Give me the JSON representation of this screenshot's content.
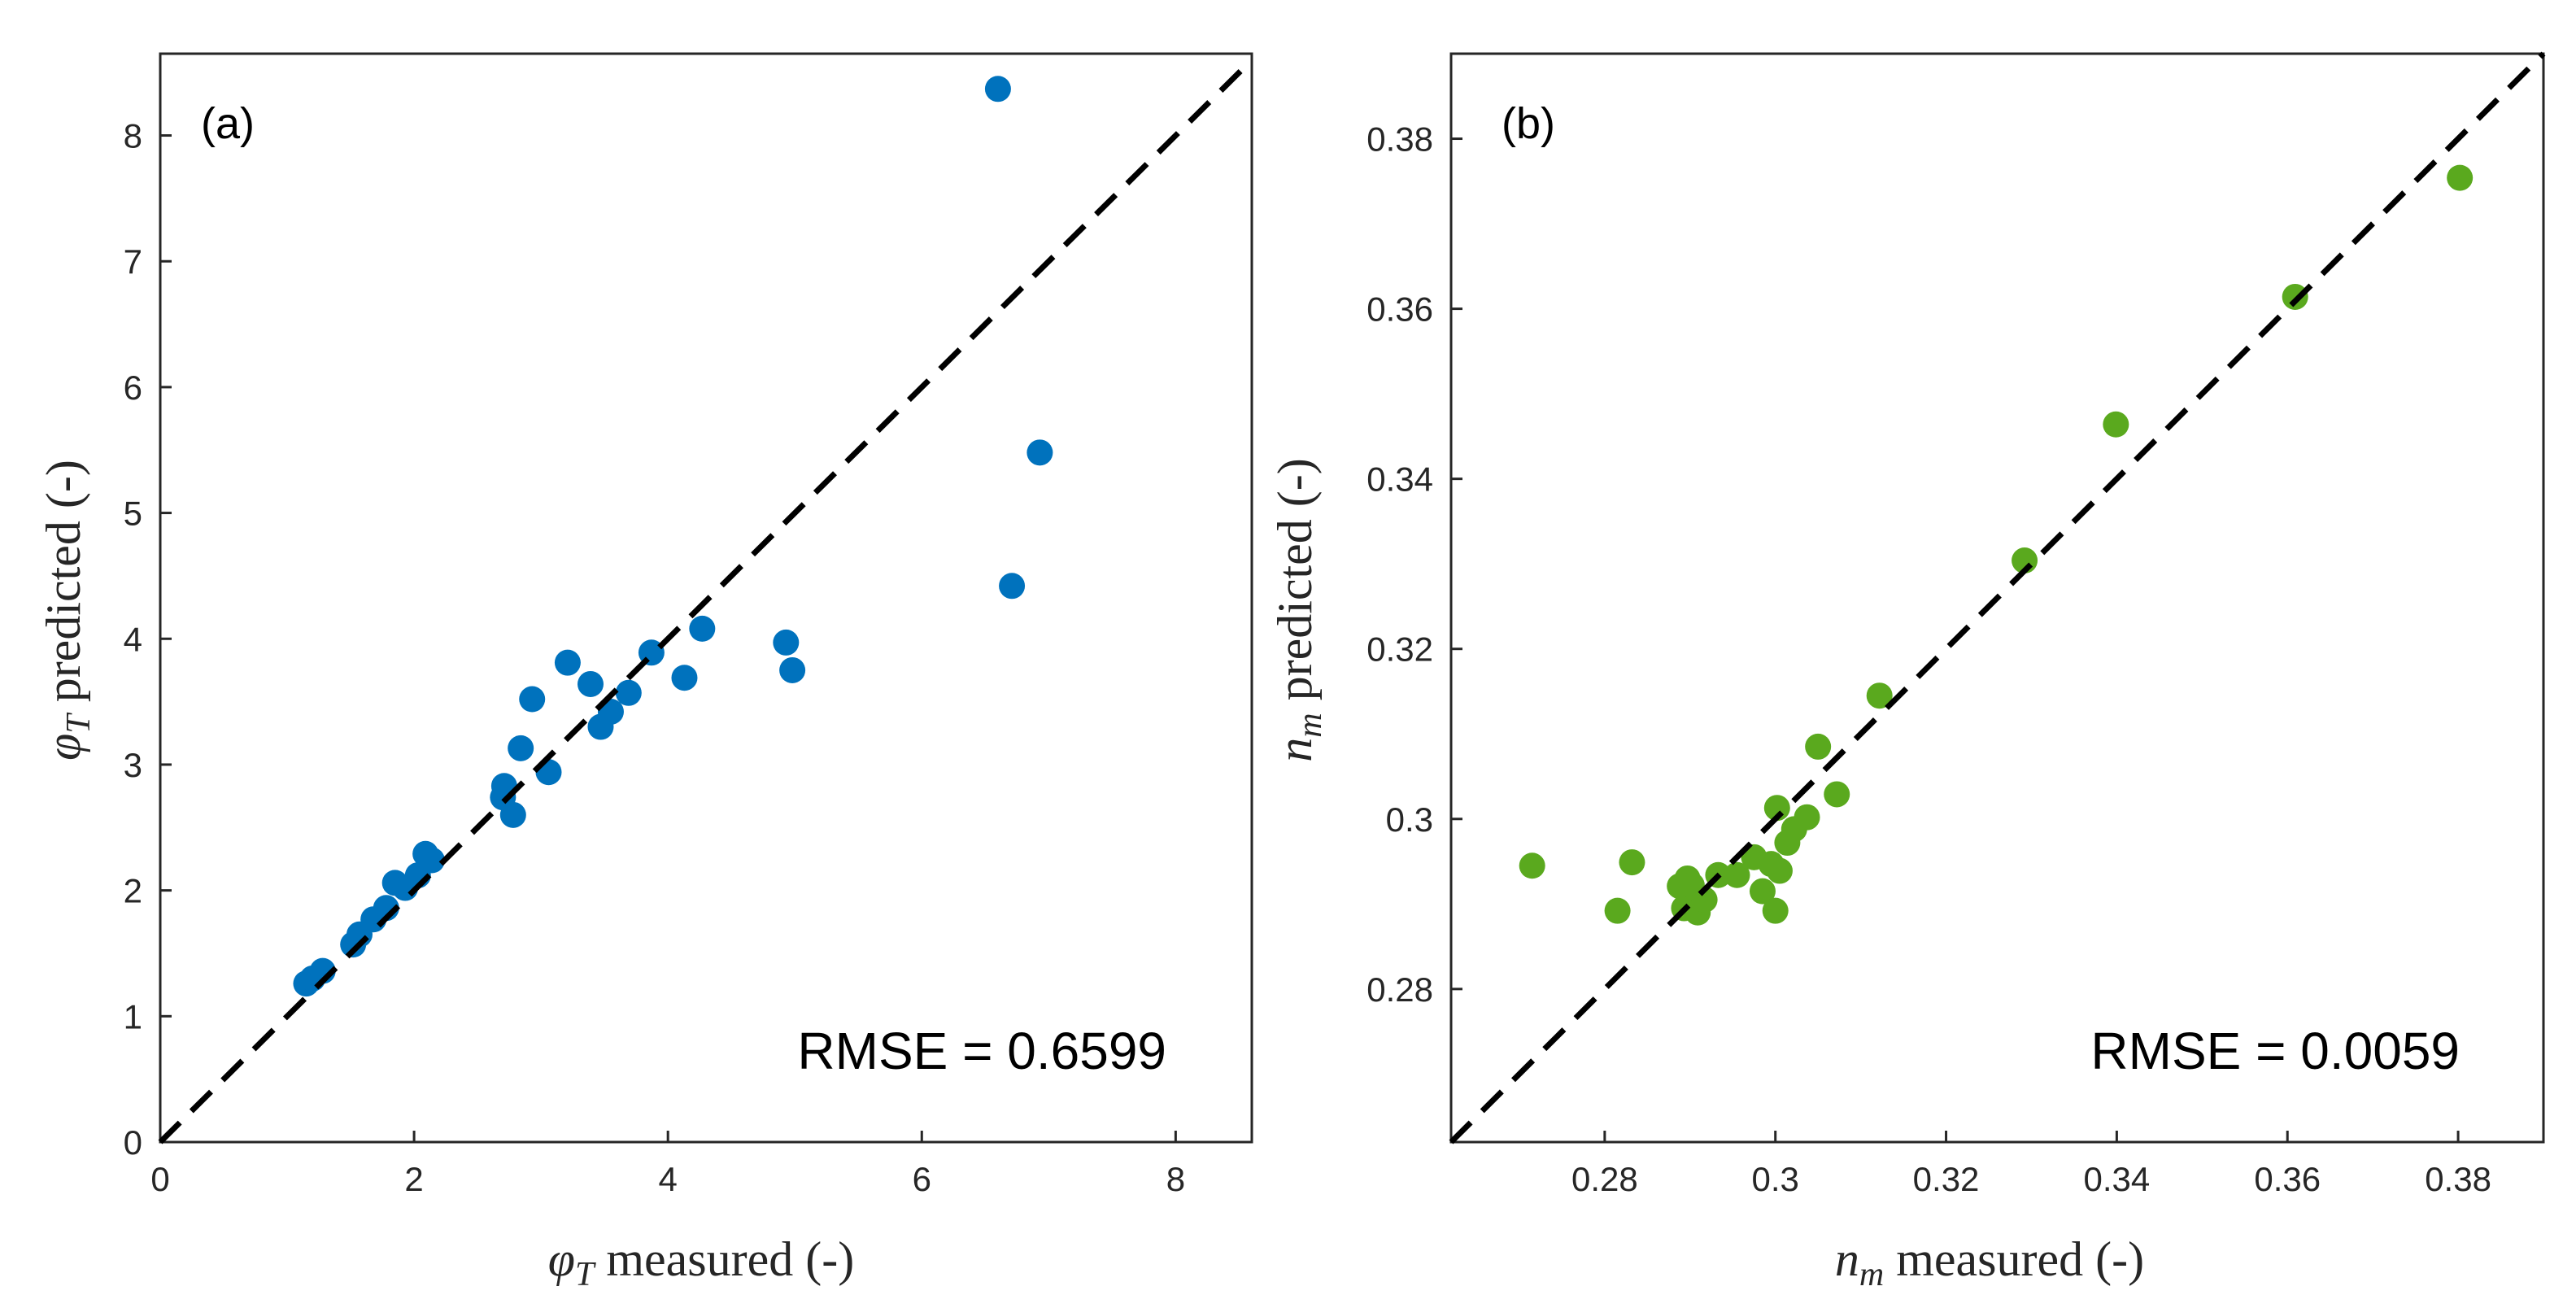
{
  "chart_data": [
    {
      "type": "scatter",
      "panel_label": "(a)",
      "x": [
        1.15,
        1.2,
        1.28,
        1.52,
        1.57,
        1.68,
        1.78,
        1.85,
        1.93,
        2.03,
        2.09,
        2.14,
        2.7,
        2.71,
        2.78,
        2.84,
        2.93,
        3.06,
        3.21,
        3.39,
        3.47,
        3.55,
        3.69,
        3.87,
        4.13,
        4.27,
        4.93,
        4.98,
        6.6,
        6.71,
        6.93
      ],
      "y": [
        1.26,
        1.3,
        1.36,
        1.57,
        1.65,
        1.77,
        1.86,
        2.06,
        2.02,
        2.12,
        2.29,
        2.24,
        2.74,
        2.83,
        2.6,
        3.13,
        3.52,
        2.94,
        3.81,
        3.64,
        3.3,
        3.42,
        3.57,
        3.89,
        3.69,
        4.08,
        3.97,
        3.75,
        8.37,
        4.42,
        5.48
      ],
      "color": "#0072BD",
      "reference_line": "y = x",
      "xlabel_symbol": "φ",
      "xlabel_sub": "T",
      "xlabel_text": " measured (-)",
      "ylabel_symbol": "φ",
      "ylabel_sub": "T",
      "ylabel_text": " predicted (-)",
      "xlim": [
        0,
        8.6
      ],
      "ylim": [
        0,
        8.65
      ],
      "xticks": [
        0,
        2,
        4,
        6,
        8
      ],
      "yticks": [
        0,
        1,
        2,
        3,
        4,
        5,
        6,
        7,
        8
      ],
      "xtick_labels": [
        "0",
        "2",
        "4",
        "6",
        "8"
      ],
      "ytick_labels": [
        "0",
        "1",
        "2",
        "3",
        "4",
        "5",
        "6",
        "7",
        "8"
      ],
      "annotation": "RMSE = 0.6599"
    },
    {
      "type": "scatter",
      "panel_label": "(b)",
      "x": [
        0.2715,
        0.2815,
        0.2832,
        0.2888,
        0.2893,
        0.2897,
        0.2902,
        0.2909,
        0.2917,
        0.2933,
        0.2955,
        0.2975,
        0.2985,
        0.2995,
        0.3,
        0.3002,
        0.3005,
        0.3014,
        0.3022,
        0.3037,
        0.305,
        0.3072,
        0.3122,
        0.3292,
        0.3399,
        0.3609,
        0.3802
      ],
      "y": [
        0.2945,
        0.2892,
        0.2949,
        0.2921,
        0.2895,
        0.293,
        0.2922,
        0.289,
        0.2905,
        0.2934,
        0.2934,
        0.2955,
        0.2915,
        0.2947,
        0.2892,
        0.3013,
        0.2939,
        0.2972,
        0.2988,
        0.3002,
        0.3085,
        0.3029,
        0.3145,
        0.3304,
        0.3464,
        0.3614,
        0.3754
      ],
      "color": "#5AA91E",
      "reference_line": "y = x",
      "xlabel_symbol": "n",
      "xlabel_sub": "m",
      "xlabel_text": " measured (-)",
      "ylabel_symbol": "n",
      "ylabel_sub": "m",
      "ylabel_text": " predicted (-)",
      "xlim": [
        0.262,
        0.39
      ],
      "ylim": [
        0.262,
        0.39
      ],
      "xticks": [
        0.28,
        0.3,
        0.32,
        0.34,
        0.36,
        0.38
      ],
      "yticks": [
        0.28,
        0.3,
        0.32,
        0.34,
        0.36,
        0.38
      ],
      "xtick_labels": [
        "0.28",
        "0.3",
        "0.32",
        "0.34",
        "0.36",
        "0.38"
      ],
      "ytick_labels": [
        "0.28",
        "0.3",
        "0.32",
        "0.34",
        "0.36",
        "0.38"
      ],
      "annotation": "RMSE = 0.0059"
    }
  ]
}
